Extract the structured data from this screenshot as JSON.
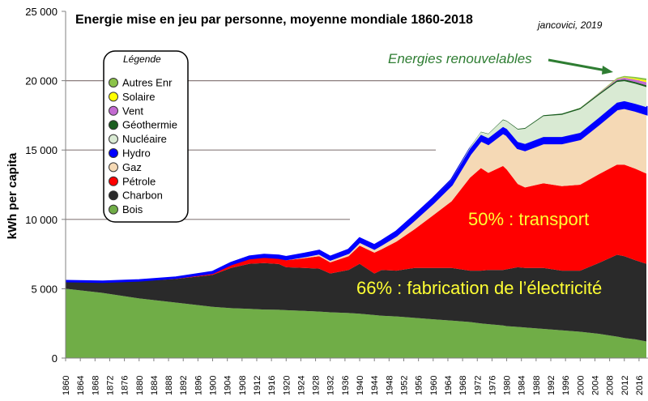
{
  "chart_data": {
    "type": "area",
    "title": "Energie mise en jeu par personne, moyenne mondiale 1860-2018",
    "credit": "jancovici, 2019",
    "ylabel": "kWh per capita",
    "xlabel": "",
    "xlim": [
      1860,
      2018
    ],
    "ylim": [
      0,
      25000
    ],
    "yticks": [
      0,
      5000,
      10000,
      15000,
      20000,
      25000
    ],
    "ytick_labels": [
      "0",
      "5 000",
      "10 000",
      "15 000",
      "20 000",
      "25 000"
    ],
    "xtick_labels": [
      "1860",
      "1864",
      "1868",
      "1872",
      "1876",
      "1880",
      "1884",
      "1888",
      "1892",
      "1896",
      "1900",
      "1904",
      "1908",
      "1912",
      "1916",
      "1920",
      "1924",
      "1928",
      "1932",
      "1936",
      "1940",
      "1944",
      "1948",
      "1952",
      "1956",
      "1960",
      "1964",
      "1968",
      "1972",
      "1976",
      "1980",
      "1984",
      "1988",
      "1992",
      "1996",
      "2000",
      "2004",
      "2008",
      "2012",
      "2016"
    ],
    "stacked": true,
    "legend": {
      "title": "Légende",
      "placement": "left",
      "entries": [
        {
          "name": "Autres Enr",
          "color": "#8bc34a"
        },
        {
          "name": "Solaire",
          "color": "#ffff00"
        },
        {
          "name": "Vent",
          "color": "#c36bd1"
        },
        {
          "name": "Géothermie",
          "color": "#1b5e20"
        },
        {
          "name": "Nucléaire",
          "color": "#d9ead3"
        },
        {
          "name": "Hydro",
          "color": "#0000ff"
        },
        {
          "name": "Gaz",
          "color": "#f5d9b5"
        },
        {
          "name": "Pétrole",
          "color": "#ff0000"
        },
        {
          "name": "Charbon",
          "color": "#2a2a2a"
        },
        {
          "name": "Bois",
          "color": "#70ad47"
        }
      ]
    },
    "x": [
      1860,
      1870,
      1880,
      1890,
      1900,
      1905,
      1910,
      1914,
      1918,
      1920,
      1925,
      1929,
      1932,
      1937,
      1940,
      1944,
      1946,
      1950,
      1955,
      1960,
      1965,
      1970,
      1973,
      1975,
      1979,
      1980,
      1983,
      1985,
      1990,
      1995,
      2000,
      2005,
      2010,
      2012,
      2015,
      2018
    ],
    "series": [
      {
        "name": "Bois",
        "color": "#70ad47",
        "values": [
          5000,
          4700,
          4300,
          4000,
          3700,
          3600,
          3550,
          3500,
          3480,
          3450,
          3400,
          3350,
          3300,
          3250,
          3200,
          3100,
          3050,
          3000,
          2900,
          2800,
          2700,
          2600,
          2500,
          2450,
          2350,
          2300,
          2250,
          2200,
          2100,
          2000,
          1900,
          1750,
          1550,
          1450,
          1350,
          1200
        ]
      },
      {
        "name": "Charbon",
        "color": "#2a2a2a",
        "values": [
          550,
          800,
          1250,
          1700,
          2300,
          2900,
          3250,
          3350,
          3300,
          3100,
          3100,
          3100,
          2800,
          3100,
          3600,
          3000,
          3300,
          3300,
          3600,
          3700,
          3800,
          3700,
          3800,
          3900,
          4000,
          4100,
          4300,
          4300,
          4400,
          4300,
          4400,
          5100,
          5900,
          5900,
          5700,
          5600
        ]
      },
      {
        "name": "Pétrole",
        "color": "#ff0000",
        "values": [
          0,
          0,
          50,
          100,
          150,
          250,
          350,
          400,
          400,
          500,
          700,
          900,
          800,
          1000,
          1300,
          1500,
          1500,
          2100,
          2800,
          3800,
          4800,
          6700,
          7400,
          7000,
          7500,
          7200,
          6000,
          5800,
          6100,
          6100,
          6200,
          6400,
          6500,
          6600,
          6600,
          6500
        ]
      },
      {
        "name": "Gaz",
        "color": "#f5d9b5",
        "values": [
          0,
          0,
          0,
          0,
          0,
          20,
          50,
          60,
          60,
          80,
          150,
          200,
          200,
          250,
          300,
          300,
          350,
          450,
          700,
          900,
          1200,
          1700,
          2000,
          2100,
          2400,
          2500,
          2600,
          2700,
          2900,
          3100,
          3300,
          3600,
          4000,
          4100,
          4200,
          4300
        ]
      },
      {
        "name": "Hydro",
        "color": "#0000ff",
        "values": [
          0,
          0,
          0,
          0,
          50,
          80,
          110,
          120,
          130,
          140,
          160,
          180,
          190,
          200,
          220,
          230,
          240,
          260,
          290,
          320,
          350,
          380,
          390,
          400,
          410,
          420,
          430,
          430,
          440,
          440,
          440,
          450,
          460,
          470,
          480,
          490
        ]
      },
      {
        "name": "Nucléaire",
        "color": "#d9ead3",
        "values": [
          0,
          0,
          0,
          0,
          0,
          0,
          0,
          0,
          0,
          0,
          0,
          0,
          0,
          0,
          0,
          0,
          0,
          0,
          0,
          0,
          20,
          100,
          200,
          300,
          500,
          550,
          900,
          1100,
          1500,
          1600,
          1700,
          1650,
          1500,
          1450,
          1450,
          1450
        ]
      },
      {
        "name": "Géothermie",
        "color": "#1b5e20",
        "values": [
          0,
          0,
          0,
          0,
          0,
          0,
          0,
          0,
          0,
          0,
          0,
          0,
          0,
          0,
          0,
          0,
          0,
          0,
          0,
          0,
          10,
          20,
          30,
          30,
          40,
          40,
          50,
          60,
          70,
          80,
          90,
          100,
          110,
          115,
          120,
          125
        ]
      },
      {
        "name": "Vent",
        "color": "#c36bd1",
        "values": [
          0,
          0,
          0,
          0,
          0,
          0,
          0,
          0,
          0,
          0,
          0,
          0,
          0,
          0,
          0,
          0,
          0,
          0,
          0,
          0,
          0,
          0,
          0,
          0,
          0,
          0,
          0,
          0,
          0,
          5,
          10,
          30,
          90,
          130,
          180,
          230
        ]
      },
      {
        "name": "Solaire",
        "color": "#ffff00",
        "values": [
          0,
          0,
          0,
          0,
          0,
          0,
          0,
          0,
          0,
          0,
          0,
          0,
          0,
          0,
          0,
          0,
          0,
          0,
          0,
          0,
          0,
          0,
          0,
          0,
          0,
          0,
          0,
          0,
          0,
          0,
          0,
          5,
          20,
          40,
          80,
          130
        ]
      },
      {
        "name": "Autres Enr",
        "color": "#8bc34a",
        "values": [
          0,
          0,
          0,
          0,
          0,
          0,
          0,
          0,
          0,
          0,
          0,
          0,
          0,
          0,
          0,
          0,
          0,
          0,
          0,
          0,
          0,
          0,
          0,
          0,
          0,
          0,
          0,
          0,
          0,
          0,
          10,
          30,
          70,
          90,
          110,
          130
        ]
      }
    ],
    "annotations": {
      "transport": "50% : transport",
      "electricite": "66% : fabrication de l’électricité",
      "renouvelables": "Energies renouvelables"
    }
  }
}
